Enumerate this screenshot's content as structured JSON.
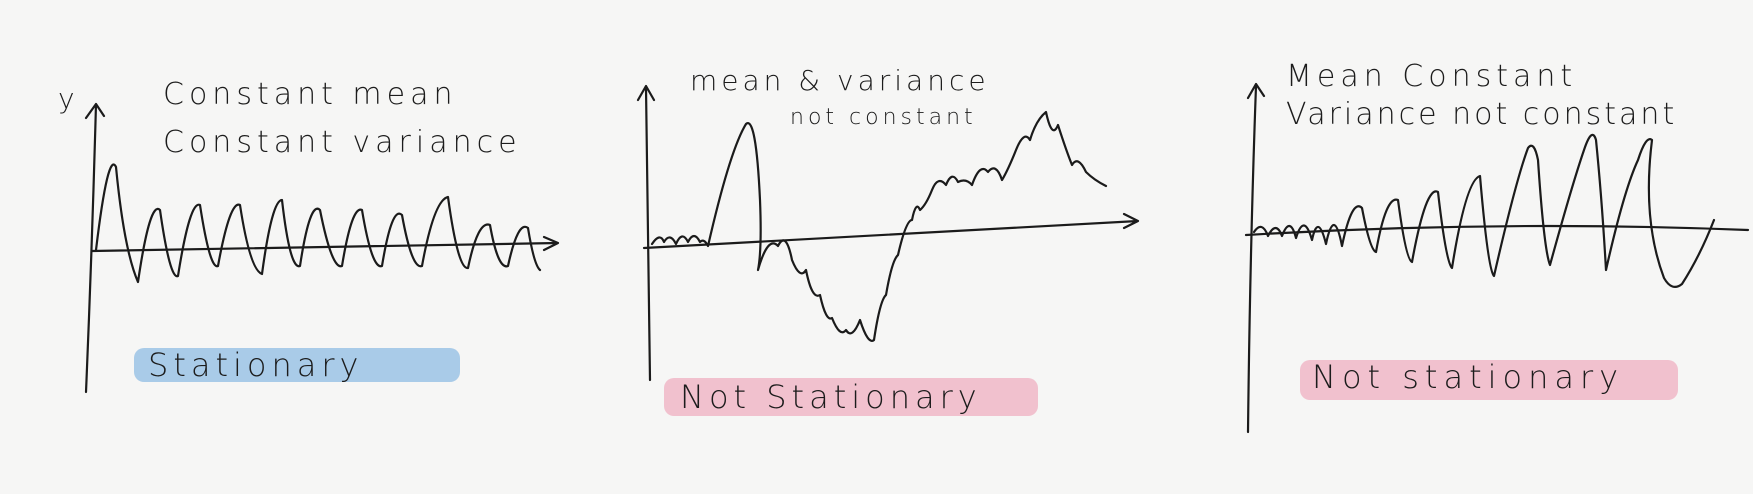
{
  "panels": [
    {
      "axis_label": "y",
      "caption_lines": [
        "Constant mean",
        "Constant variance"
      ],
      "verdict": "Stationary",
      "verdict_color": "#a9cbe8"
    },
    {
      "axis_label": "",
      "caption_lines": [
        "mean & variance",
        "not constant"
      ],
      "verdict": "Not Stationary",
      "verdict_color": "#f1c1ce"
    },
    {
      "axis_label": "",
      "caption_lines": [
        "Mean Constant",
        "Variance not constant"
      ],
      "verdict": "Not stationary",
      "verdict_color": "#f1c1ce"
    }
  ],
  "colors": {
    "ink": "#1b1b1b",
    "paper": "#f6f6f5"
  }
}
